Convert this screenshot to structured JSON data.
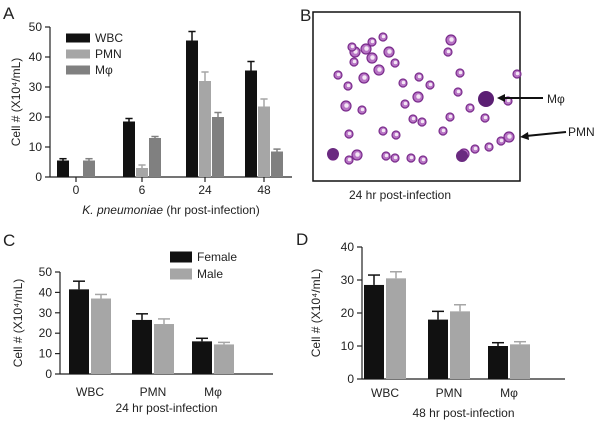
{
  "panel_labels": {
    "a": "A",
    "b": "B",
    "c": "C",
    "d": "D"
  },
  "colors": {
    "black": "#111111",
    "light_gray": "#a6a6a6",
    "dark_gray": "#808080",
    "axis": "#222222"
  },
  "micrograph": {
    "caption": "24 hr post-infection",
    "arrow_macrophage": "Mφ",
    "arrow_pmn": "PMN"
  },
  "chart_data": [
    {
      "id": "A",
      "type": "bar",
      "title": "",
      "xlabel": "K. pneumoniae (hr post-infection)",
      "ylabel": "Cell # (X10⁴/mL)",
      "categories": [
        "0",
        "6",
        "24",
        "48"
      ],
      "ylim": [
        0,
        50
      ],
      "yticks": [
        0,
        10,
        20,
        30,
        40,
        50
      ],
      "legend_position": "top-left",
      "series": [
        {
          "name": "WBC",
          "color": "#111111",
          "values": [
            5.5,
            18.5,
            45.5,
            35.5
          ],
          "errors": [
            0.6,
            1.0,
            3.0,
            3.0
          ]
        },
        {
          "name": "PMN",
          "color": "#a6a6a6",
          "values": [
            0,
            3,
            32,
            23.5
          ],
          "errors": [
            0,
            1.0,
            3.0,
            2.5
          ]
        },
        {
          "name": "Mφ",
          "color": "#808080",
          "values": [
            5.5,
            13,
            20,
            8.5
          ],
          "errors": [
            0.6,
            0.5,
            1.5,
            0.8
          ]
        }
      ]
    },
    {
      "id": "C",
      "type": "bar",
      "title": "",
      "xlabel": "24 hr post-infection",
      "ylabel": "Cell # (X10⁴/mL)",
      "categories": [
        "WBC",
        "PMN",
        "Mφ"
      ],
      "ylim": [
        0,
        50
      ],
      "yticks": [
        0,
        10,
        20,
        30,
        40,
        50
      ],
      "legend_position": "top-right",
      "series": [
        {
          "name": "Female",
          "color": "#111111",
          "values": [
            41.5,
            26.5,
            16
          ],
          "errors": [
            4.0,
            3.0,
            1.5
          ]
        },
        {
          "name": "Male",
          "color": "#a6a6a6",
          "values": [
            37,
            24.5,
            14.5
          ],
          "errors": [
            2.0,
            2.5,
            1.0
          ]
        }
      ]
    },
    {
      "id": "D",
      "type": "bar",
      "title": "",
      "xlabel": "48 hr post-infection",
      "ylabel": "Cell # (X10⁴/mL)",
      "categories": [
        "WBC",
        "PMN",
        "Mφ"
      ],
      "ylim": [
        0,
        40
      ],
      "yticks": [
        0,
        10,
        20,
        30,
        40
      ],
      "legend_position": "none",
      "series": [
        {
          "name": "Female",
          "color": "#111111",
          "values": [
            28.5,
            18,
            10
          ],
          "errors": [
            3.0,
            2.5,
            1.0
          ]
        },
        {
          "name": "Male",
          "color": "#a6a6a6",
          "values": [
            30.5,
            20.5,
            10.5
          ],
          "errors": [
            2.0,
            2.0,
            0.8
          ]
        }
      ]
    }
  ]
}
